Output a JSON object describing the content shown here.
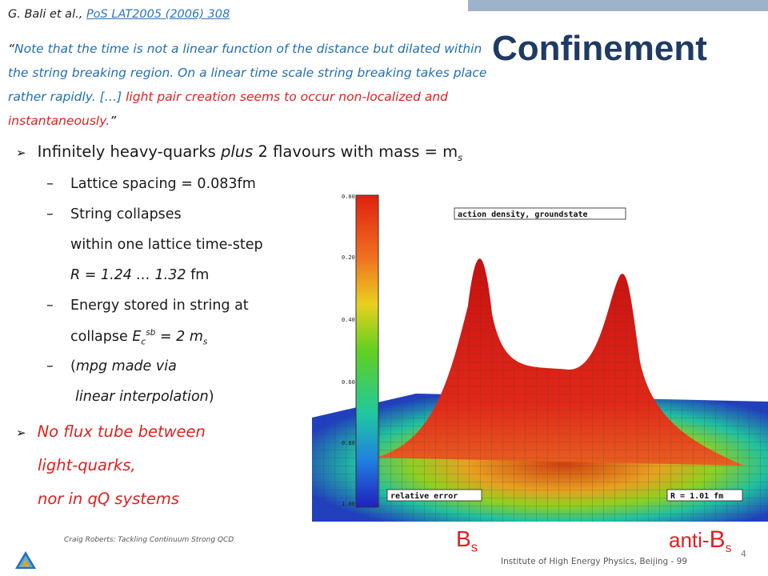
{
  "citation": {
    "authors": "G. Bali",
    "etal": " et al., ",
    "ref": "PoS LAT2005 (2006) 308"
  },
  "quote": {
    "open": "“",
    "blue": "Note that the time is not a linear function of the distance but dilated within the string breaking region. On a linear time scale string breaking takes place rather rapidly. […]",
    "red": " light pair creation seems to occur non-localized and instantaneously.",
    "close": "”"
  },
  "title": "Confinement",
  "bullet1": {
    "pre": "Infinitely heavy-quarks ",
    "plus": "plus",
    "post": " 2 flavours with mass = m",
    "sub": "s"
  },
  "subitems": {
    "spacing": "Lattice spacing = 0.083fm",
    "collapse1": "String  collapses",
    "collapse2": "within one lattice time-step",
    "range_italic": "R = 1.24 … 1.32",
    "range_unit": " fm",
    "energy1": "Energy stored in string at",
    "energy2_pre": "collapse  ",
    "energy2_E": "E",
    "energy2_sub": "c",
    "energy2_sup": "sb",
    "energy2_post": " = 2 m",
    "energy2_ms": "s",
    "mpg1_open": "(",
    "mpg1": "mpg made via",
    "mpg2": "linear interpolation",
    "mpg2_close": ")"
  },
  "bullet2": {
    "line1": "No flux tube between",
    "line2": "light-quarks,",
    "line3": "nor in qQ systems"
  },
  "plot": {
    "label_top": "action density, groundstate",
    "label_bottom_left": "relative error",
    "label_bottom_right": "R = 1.01 fm",
    "scale_ticks": [
      "0.00",
      "0.20",
      "0.40",
      "0.60",
      "0.80",
      "1.00"
    ]
  },
  "particles": {
    "bs": "B",
    "bs_sub": "s",
    "anti": "anti-",
    "anti_b": "B",
    "anti_sub": "s"
  },
  "footer": {
    "left": "Craig Roberts: Tackling Continuum Strong QCD",
    "right": "Institute  of High Energy Physics, Beijing - 99",
    "page": "4"
  }
}
